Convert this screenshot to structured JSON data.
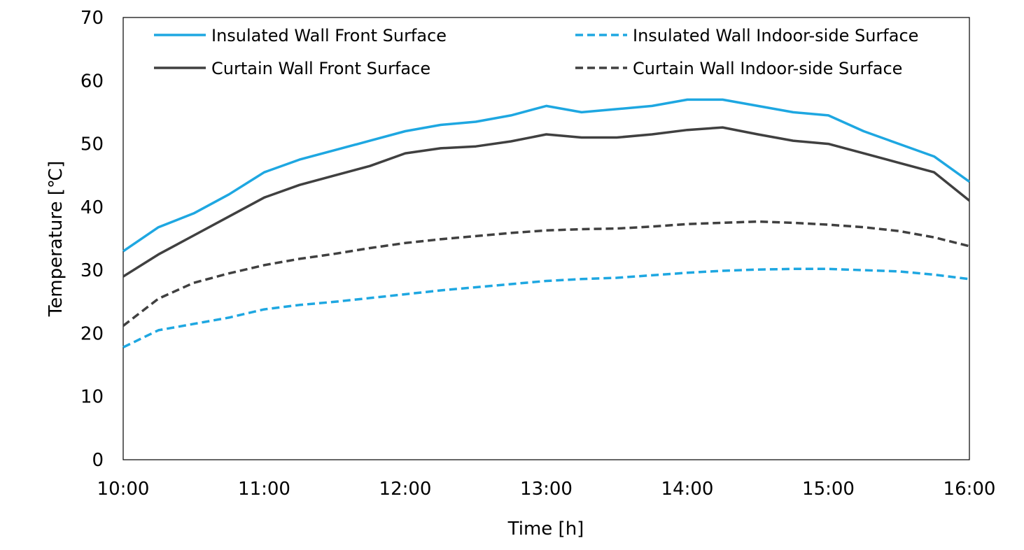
{
  "chart_data": {
    "type": "line",
    "title": "",
    "xlabel": "Time [h]",
    "ylabel": "Temperature [℃]",
    "xlim": [
      "10:00",
      "16:00"
    ],
    "ylim": [
      0,
      70
    ],
    "x_ticks": [
      "10:00",
      "11:00",
      "12:00",
      "13:00",
      "14:00",
      "15:00",
      "16:00"
    ],
    "y_ticks": [
      0,
      10,
      20,
      30,
      40,
      50,
      60,
      70
    ],
    "grid": false,
    "legend_position": "top",
    "x": [
      "10:00",
      "10:15",
      "10:30",
      "10:45",
      "11:00",
      "11:15",
      "11:30",
      "11:45",
      "12:00",
      "12:15",
      "12:30",
      "12:45",
      "13:00",
      "13:15",
      "13:30",
      "13:45",
      "14:00",
      "14:15",
      "14:30",
      "14:45",
      "15:00",
      "15:15",
      "15:30",
      "15:45",
      "16:00"
    ],
    "series": [
      {
        "name": "Insulated Wall Front Surface",
        "color": "#1ea7e1",
        "dash": "solid",
        "values": [
          33,
          36.8,
          39,
          42,
          45.5,
          47.5,
          49,
          50.5,
          52,
          53,
          53.5,
          54.5,
          56,
          55,
          55.5,
          56,
          57,
          57,
          56,
          55,
          54.5,
          52,
          50,
          48,
          44
        ]
      },
      {
        "name": "Insulated Wall Indoor-side Surface",
        "color": "#1ea7e1",
        "dash": "dashed",
        "values": [
          17.8,
          20.5,
          21.5,
          22.5,
          23.8,
          24.5,
          25,
          25.6,
          26.2,
          26.8,
          27.3,
          27.8,
          28.3,
          28.6,
          28.8,
          29.2,
          29.6,
          29.9,
          30.1,
          30.2,
          30.2,
          30,
          29.8,
          29.3,
          28.6
        ]
      },
      {
        "name": "Curtain Wall Front Surface",
        "color": "#404040",
        "dash": "solid",
        "values": [
          29,
          32.5,
          35.5,
          38.5,
          41.5,
          43.5,
          45,
          46.5,
          48.5,
          49.3,
          49.6,
          50.4,
          51.5,
          51,
          51,
          51.5,
          52.2,
          52.6,
          51.5,
          50.5,
          50,
          48.5,
          47,
          45.5,
          41
        ]
      },
      {
        "name": "Curtain Wall Indoor-side Surface",
        "color": "#404040",
        "dash": "dashed",
        "values": [
          21.2,
          25.5,
          28,
          29.5,
          30.8,
          31.8,
          32.6,
          33.5,
          34.3,
          34.9,
          35.4,
          35.9,
          36.3,
          36.5,
          36.6,
          36.9,
          37.3,
          37.5,
          37.7,
          37.5,
          37.2,
          36.8,
          36.2,
          35.2,
          33.8
        ]
      }
    ]
  }
}
